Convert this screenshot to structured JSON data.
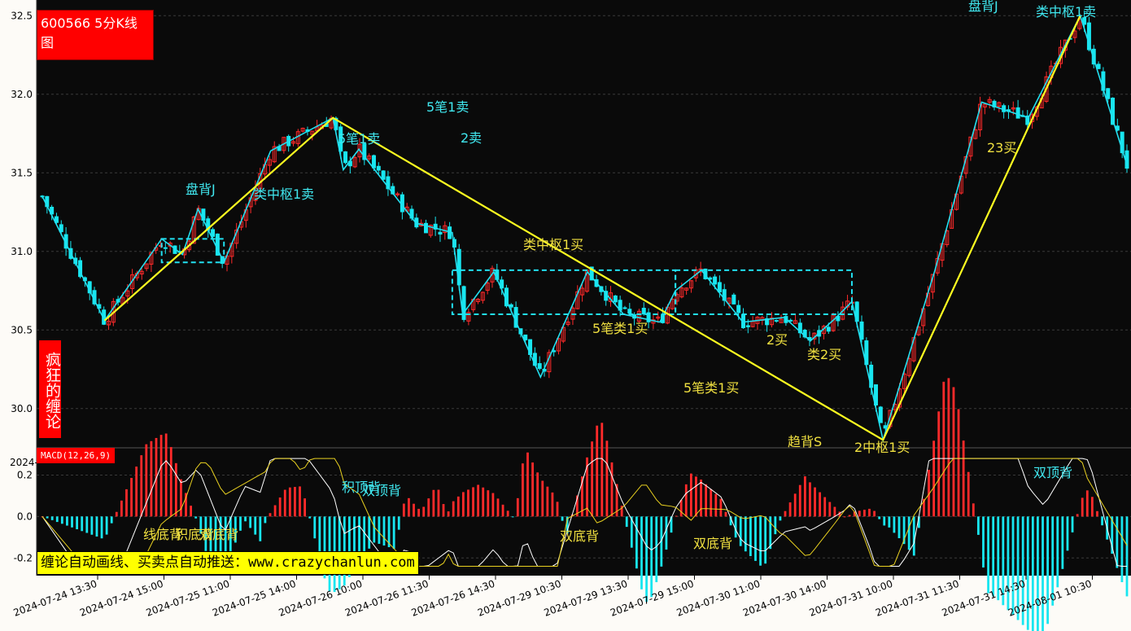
{
  "title": "600566 5分K线图",
  "brand": "疯狂的缠论",
  "macd_label": "MACD(12,26,9)",
  "banner": "缠论自动画线、买卖点自动推送：www.crazychanlun.com",
  "colors": {
    "up": "#ff2a2a",
    "down": "#18e6f0",
    "bg": "#0a0a0a",
    "pen": "#22e0f0",
    "segment": "#ffff20",
    "zone": "#22e0f0",
    "sell_note": "#40e8f0",
    "buy_note": "#f0e040"
  },
  "chart_data": [
    {
      "type": "candlestick",
      "title": "600566 5分K线图",
      "ylim": [
        29.75,
        32.6
      ],
      "yticks": [
        "30.0",
        "30.5",
        "31.0",
        "31.5",
        "32.0",
        "32.5"
      ],
      "x_dates": [
        "2024-07-24 13:30",
        "2024-07-24 15:00",
        "2024-07-25 11:00",
        "2024-07-25 14:00",
        "2024-07-26 10:00",
        "2024-07-26 11:30",
        "2024-07-26 14:30",
        "2024-07-29 10:30",
        "2024-07-29 13:30",
        "2024-07-29 15:00",
        "2024-07-30 11:00",
        "2024-07-30 14:00",
        "2024-07-31 10:00",
        "2024-07-31 11:30",
        "2024-07-31 14:30",
        "2024-08-01 10:30",
        "2024-08-01"
      ],
      "pen_points": [
        [
          0.0,
          31.35
        ],
        [
          0.12,
          30.56
        ],
        [
          0.23,
          31.08
        ],
        [
          0.27,
          30.98
        ],
        [
          0.3,
          31.27
        ],
        [
          0.35,
          30.93
        ],
        [
          0.44,
          31.64
        ],
        [
          0.56,
          31.85
        ],
        [
          0.58,
          31.52
        ],
        [
          0.61,
          31.65
        ],
        [
          0.72,
          31.18
        ],
        [
          0.79,
          31.12
        ],
        [
          0.81,
          30.6
        ],
        [
          0.87,
          30.87
        ],
        [
          0.96,
          30.2
        ],
        [
          1.05,
          30.87
        ],
        [
          1.12,
          30.6
        ],
        [
          1.19,
          30.55
        ],
        [
          1.22,
          30.75
        ],
        [
          1.27,
          30.88
        ],
        [
          1.35,
          30.55
        ],
        [
          1.43,
          30.58
        ],
        [
          1.48,
          30.43
        ],
        [
          1.53,
          30.58
        ],
        [
          1.56,
          30.68
        ],
        [
          1.62,
          29.8
        ],
        [
          1.72,
          30.88
        ],
        [
          1.81,
          31.95
        ],
        [
          1.9,
          31.85
        ],
        [
          2.0,
          32.5
        ],
        [
          2.09,
          31.55
        ]
      ],
      "segment_points": [
        [
          0.12,
          30.56
        ],
        [
          0.56,
          31.85
        ],
        [
          1.62,
          29.8
        ],
        [
          2.0,
          32.5
        ]
      ],
      "zones": [
        {
          "low": 30.93,
          "high": 31.08
        },
        {
          "low": 30.6,
          "high": 30.88
        }
      ],
      "annotations": [
        {
          "text": "盘背J",
          "kind": "sell"
        },
        {
          "text": "类中枢1卖",
          "kind": "sell"
        },
        {
          "text": "5笔1卖",
          "kind": "sell"
        },
        {
          "text": "5笔1卖",
          "kind": "sell"
        },
        {
          "text": "2卖",
          "kind": "sell"
        },
        {
          "text": "类中枢1买",
          "kind": "buy"
        },
        {
          "text": "5笔类1买",
          "kind": "buy"
        },
        {
          "text": "5笔类1买",
          "kind": "buy"
        },
        {
          "text": "2买",
          "kind": "buy"
        },
        {
          "text": "类2买",
          "kind": "buy"
        },
        {
          "text": "趋背S",
          "kind": "buy"
        },
        {
          "text": "2中枢1买",
          "kind": "buy"
        },
        {
          "text": "23买",
          "kind": "buy"
        },
        {
          "text": "盘背J",
          "kind": "sell"
        },
        {
          "text": "类中枢1卖",
          "kind": "sell"
        }
      ]
    },
    {
      "type": "macd",
      "title": "MACD(12,26,9)",
      "ylim": [
        -0.25,
        0.3
      ],
      "yticks": [
        "0.2",
        "0.0",
        "-0.2"
      ],
      "top_label": "2024-",
      "annotations": [
        {
          "text": "线底背",
          "kind": "buy"
        },
        {
          "text": "积底背",
          "kind": "buy"
        },
        {
          "text": "双底背",
          "kind": "buy"
        },
        {
          "text": "积顶背",
          "kind": "sell"
        },
        {
          "text": "双顶背",
          "kind": "sell"
        },
        {
          "text": "双底背",
          "kind": "buy"
        },
        {
          "text": "双底背",
          "kind": "buy"
        },
        {
          "text": "双顶背",
          "kind": "sell"
        }
      ]
    }
  ]
}
